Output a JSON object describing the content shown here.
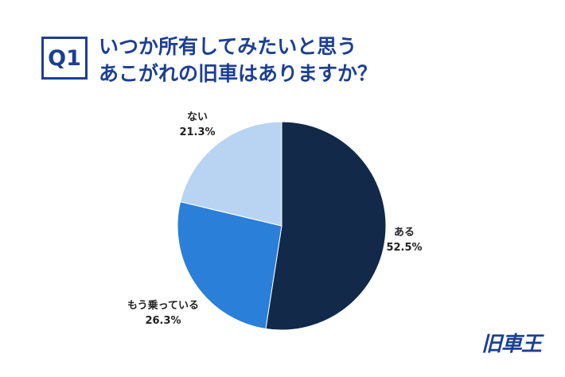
{
  "question": {
    "badge": "Q1",
    "line1": "いつか所有してみたいと思う",
    "line2": "あこがれの旧車はありますか？"
  },
  "chart_data": {
    "type": "pie",
    "slices": [
      {
        "label": "ある",
        "value": 52.5,
        "value_label": "52.5%",
        "color": "#12294a"
      },
      {
        "label": "もう乗っている",
        "value": 26.3,
        "value_label": "26.3%",
        "color": "#2a7fd8"
      },
      {
        "label": "ない",
        "value": 21.3,
        "value_label": "21.3%",
        "color": "#b8d4f2"
      }
    ],
    "start_angle_deg": 0,
    "direction": "clockwise"
  },
  "logo": {
    "text": "旧車王"
  }
}
